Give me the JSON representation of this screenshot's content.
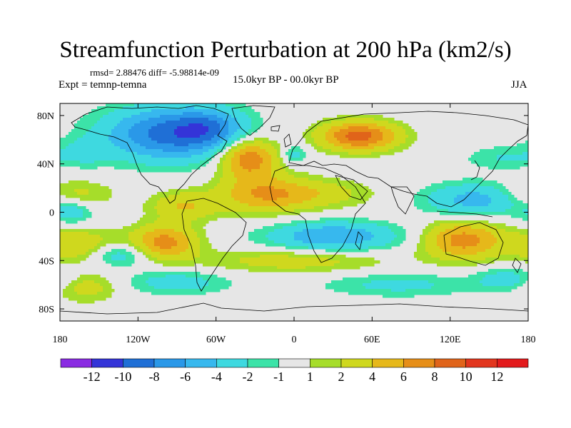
{
  "header": {
    "title": "Streamfunction Perturbation at 200 hPa (km2/s)",
    "stats": "rmsd= 2.88476 diff= -5.98814e-09",
    "experiment": "Expt = temnp-temna",
    "period": "15.0kyr BP - 00.0kyr BP",
    "season": "JJA"
  },
  "map": {
    "lat_range": [
      -90,
      90
    ],
    "lon_range": [
      -180,
      180
    ],
    "lat_ticks": [
      {
        "value": 80,
        "label": "80N"
      },
      {
        "value": 40,
        "label": "40N"
      },
      {
        "value": 0,
        "label": "0"
      },
      {
        "value": -40,
        "label": "40S"
      },
      {
        "value": -80,
        "label": "80S"
      }
    ],
    "lon_ticks": [
      {
        "value": -180,
        "label": "180"
      },
      {
        "value": -120,
        "label": "120W"
      },
      {
        "value": -60,
        "label": "60W"
      },
      {
        "value": 0,
        "label": "0"
      },
      {
        "value": 60,
        "label": "60E"
      },
      {
        "value": 120,
        "label": "120E"
      },
      {
        "value": 180,
        "label": "180"
      }
    ],
    "background_color": "#e6e6e6",
    "anomaly_centers": [
      {
        "lon": -95,
        "lat": 65,
        "amp": -9,
        "rx": 50,
        "ry": 22
      },
      {
        "lon": -65,
        "lat": 70,
        "amp": -4,
        "rx": 25,
        "ry": 15
      },
      {
        "lon": -35,
        "lat": 45,
        "amp": 8,
        "rx": 22,
        "ry": 16
      },
      {
        "lon": -25,
        "lat": 15,
        "amp": 5,
        "rx": 35,
        "ry": 16
      },
      {
        "lon": -85,
        "lat": 5,
        "amp": 4,
        "rx": 25,
        "ry": 12
      },
      {
        "lon": 50,
        "lat": 63,
        "amp": 9,
        "rx": 30,
        "ry": 12
      },
      {
        "lon": 15,
        "lat": 15,
        "amp": 3,
        "rx": 45,
        "ry": 12
      },
      {
        "lon": 0,
        "lat": 48,
        "amp": -3,
        "rx": 10,
        "ry": 8
      },
      {
        "lon": 140,
        "lat": 10,
        "amp": -5,
        "rx": 40,
        "ry": 14
      },
      {
        "lon": -170,
        "lat": 15,
        "amp": 3,
        "rx": 30,
        "ry": 12
      },
      {
        "lon": -170,
        "lat": 0,
        "amp": -3,
        "rx": 15,
        "ry": 10
      },
      {
        "lon": 30,
        "lat": -20,
        "amp": -6,
        "rx": 50,
        "ry": 12
      },
      {
        "lon": 0,
        "lat": -40,
        "amp": 3,
        "rx": 70,
        "ry": 10
      },
      {
        "lon": 130,
        "lat": -23,
        "amp": 7,
        "rx": 30,
        "ry": 16
      },
      {
        "lon": -100,
        "lat": -25,
        "amp": 7,
        "rx": 25,
        "ry": 14
      },
      {
        "lon": -165,
        "lat": -28,
        "amp": 4,
        "rx": 30,
        "ry": 14
      },
      {
        "lon": -135,
        "lat": -35,
        "amp": -4,
        "rx": 25,
        "ry": 10
      },
      {
        "lon": -90,
        "lat": -58,
        "amp": -3,
        "rx": 40,
        "ry": 10
      },
      {
        "lon": -160,
        "lat": -62,
        "amp": 3,
        "rx": 25,
        "ry": 12
      },
      {
        "lon": 165,
        "lat": -55,
        "amp": -3,
        "rx": 25,
        "ry": 10
      },
      {
        "lon": 80,
        "lat": -60,
        "amp": -2.5,
        "rx": 60,
        "ry": 10
      },
      {
        "lon": 160,
        "lat": 45,
        "amp": -2,
        "rx": 30,
        "ry": 10
      },
      {
        "lon": -160,
        "lat": 50,
        "amp": -2,
        "rx": 20,
        "ry": 12
      }
    ]
  },
  "colorbar": {
    "colors": [
      "#8a2be2",
      "#3434d8",
      "#1f6fd6",
      "#2a98e8",
      "#37b8ee",
      "#3ed9e0",
      "#3ce3a8",
      "#e6e6e6",
      "#a6dd2a",
      "#cfd81e",
      "#e6b81a",
      "#e68e18",
      "#e0641a",
      "#e2361e",
      "#e31a1c"
    ],
    "labels": [
      {
        "index": 1,
        "label": "-12"
      },
      {
        "index": 2,
        "label": "-10"
      },
      {
        "index": 3,
        "label": "-8"
      },
      {
        "index": 4,
        "label": "-6"
      },
      {
        "index": 5,
        "label": "-4"
      },
      {
        "index": 6,
        "label": "-2"
      },
      {
        "index": 7,
        "label": "-1"
      },
      {
        "index": 8,
        "label": "1"
      },
      {
        "index": 9,
        "label": "2"
      },
      {
        "index": 10,
        "label": "4"
      },
      {
        "index": 11,
        "label": "6"
      },
      {
        "index": 12,
        "label": "8"
      },
      {
        "index": 13,
        "label": "10"
      },
      {
        "index": 14,
        "label": "12"
      }
    ],
    "level_bounds": [
      -12,
      -10,
      -8,
      -6,
      -4,
      -2,
      -1,
      1,
      2,
      4,
      6,
      8,
      10,
      12
    ]
  }
}
